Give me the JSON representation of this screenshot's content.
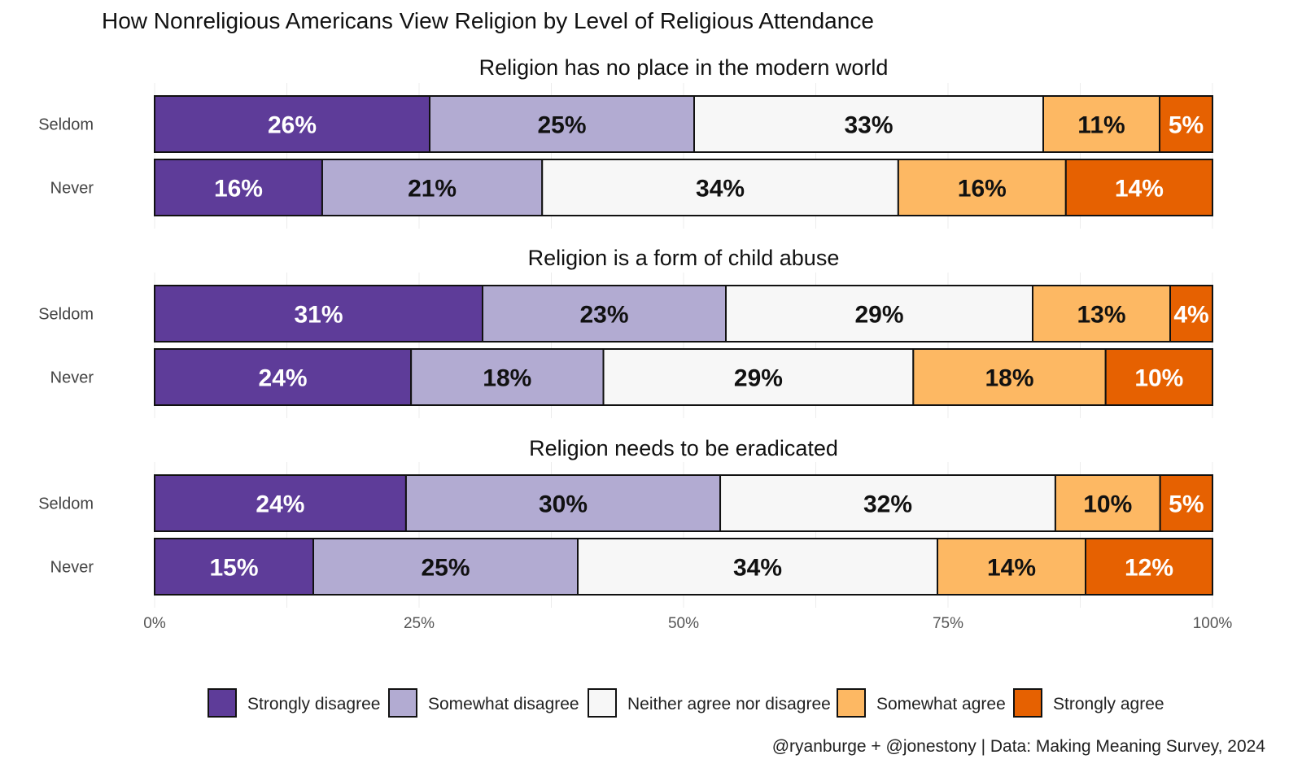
{
  "chart_data": {
    "type": "bar",
    "orientation": "horizontal-stacked-100",
    "title": "How Nonreligious Americans View Religion by Level of Religious Attendance",
    "caption": "@ryanburge + @jonestony | Data: Making Meaning Survey, 2024",
    "xlim": [
      0,
      100
    ],
    "x_ticks": [
      "0%",
      "25%",
      "50%",
      "75%",
      "100%"
    ],
    "x_tick_values": [
      0,
      25,
      50,
      75,
      100
    ],
    "legend_position": "bottom",
    "categories_legend": [
      "Strongly disagree",
      "Somewhat disagree",
      "Neither agree nor disagree",
      "Somewhat agree",
      "Strongly agree"
    ],
    "colors": [
      "#5e3c99",
      "#b2abd2",
      "#f7f7f7",
      "#fdb863",
      "#e66101"
    ],
    "label_colors": [
      "#ffffff",
      "#111111",
      "#111111",
      "#111111",
      "#ffffff"
    ],
    "panels": [
      {
        "title": "Religion has no place in the modern world",
        "rows": [
          {
            "name": "Seldom",
            "values": [
              26,
              25,
              33,
              11,
              5
            ]
          },
          {
            "name": "Never",
            "values": [
              16,
              21,
              34,
              16,
              14
            ]
          }
        ]
      },
      {
        "title": "Religion is a form of child abuse",
        "rows": [
          {
            "name": "Seldom",
            "values": [
              31,
              23,
              29,
              13,
              4
            ]
          },
          {
            "name": "Never",
            "values": [
              24,
              18,
              29,
              18,
              10
            ]
          }
        ]
      },
      {
        "title": "Religion needs to be eradicated",
        "rows": [
          {
            "name": "Seldom",
            "values": [
              24,
              30,
              32,
              10,
              5
            ]
          },
          {
            "name": "Never",
            "values": [
              15,
              25,
              34,
              14,
              12
            ]
          }
        ]
      }
    ]
  }
}
